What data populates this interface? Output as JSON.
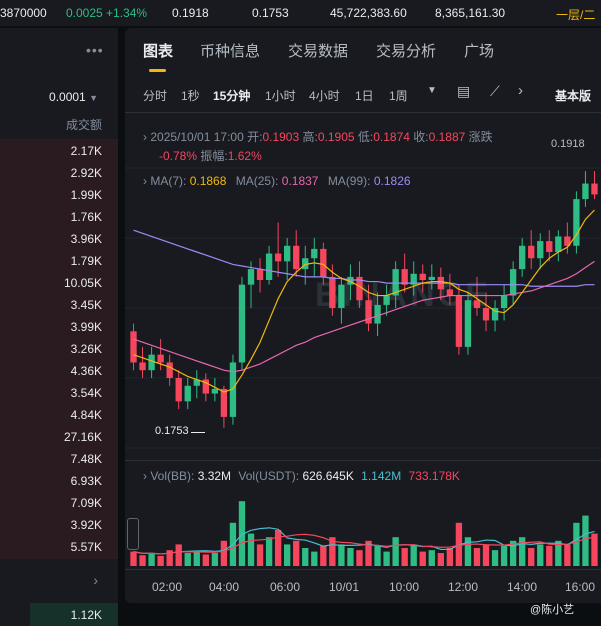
{
  "ticker": {
    "a": "3870000",
    "b": "0.0025 +1.34%",
    "c": "0.1918",
    "d": "0.1753",
    "e": "45,722,383.60",
    "f": "8,365,161.30",
    "g": "一层/二"
  },
  "left_panel": {
    "precision": "0.0001",
    "col_header": "成交额",
    "volumes": [
      "2.17K",
      "2.92K",
      "1.99K",
      "1.76K",
      "3.96K",
      "1.79K",
      "10.05K",
      "3.45K",
      "3.99K",
      "3.26K",
      "4.36K",
      "3.54K",
      "4.84K",
      "27.16K",
      "7.48K",
      "6.93K",
      "7.09K",
      "3.92K",
      "5.57K"
    ],
    "bottom_value": "1.12K"
  },
  "tabs": [
    "图表",
    "币种信息",
    "交易数据",
    "交易分析",
    "广场"
  ],
  "intervals": [
    "分时",
    "1秒",
    "15分钟",
    "1小时",
    "4小时",
    "1日",
    "1周"
  ],
  "interval_active": 2,
  "chart_mode": "基本版",
  "ohlc": {
    "date": "2025/10/01 17:00",
    "open_label": "开:",
    "open": "0.1903",
    "high_label": "高:",
    "high": "0.1905",
    "low_label": "低:",
    "low": "0.1874",
    "close_label": "收:",
    "close": "0.1887",
    "change_label": "涨跌",
    "change": "-0.78%",
    "amp_label": "振幅:",
    "amp": "1.62%"
  },
  "ma": {
    "ma7_label": "MA(7):",
    "ma7": "0.1868",
    "ma25_label": "MA(25):",
    "ma25": "0.1837",
    "ma99_label": "MA(99):",
    "ma99": "0.1826"
  },
  "vol": {
    "label1": "Vol(BB):",
    "v1": "3.32M",
    "label2": "Vol(USDT):",
    "v2": "626.645K",
    "v3": "1.142M",
    "v4": "733.178K"
  },
  "price_high_label": "0.1918",
  "price_low_label": "0.1753",
  "watermark": "BINANCE",
  "credit": "@陈小艺",
  "chart_data": {
    "type": "candlestick",
    "x_ticks": [
      "02:00",
      "04:00",
      "06:00",
      "10/01",
      "10:00",
      "12:00",
      "14:00",
      "16:00"
    ],
    "y_range": [
      0.174,
      0.192
    ],
    "colors": {
      "up": "#2ebd85",
      "down": "#f6465d",
      "ma7": "#f0b90b",
      "ma25": "#e667af",
      "ma99": "#9b8bf5"
    },
    "candles": [
      [
        0.1815,
        0.182,
        0.179,
        0.1795
      ],
      [
        0.1795,
        0.1805,
        0.1785,
        0.179
      ],
      [
        0.179,
        0.1805,
        0.1785,
        0.18
      ],
      [
        0.18,
        0.181,
        0.179,
        0.1795
      ],
      [
        0.1795,
        0.18,
        0.178,
        0.1785
      ],
      [
        0.1785,
        0.179,
        0.1765,
        0.177
      ],
      [
        0.177,
        0.1785,
        0.1765,
        0.178
      ],
      [
        0.178,
        0.179,
        0.1772,
        0.1784
      ],
      [
        0.1784,
        0.1788,
        0.177,
        0.1775
      ],
      [
        0.1775,
        0.1785,
        0.177,
        0.1778
      ],
      [
        0.1778,
        0.178,
        0.1753,
        0.176
      ],
      [
        0.176,
        0.18,
        0.1755,
        0.1795
      ],
      [
        0.1795,
        0.185,
        0.179,
        0.1845
      ],
      [
        0.1845,
        0.186,
        0.183,
        0.1855
      ],
      [
        0.1855,
        0.1862,
        0.184,
        0.1848
      ],
      [
        0.1848,
        0.187,
        0.1845,
        0.1865
      ],
      [
        0.1865,
        0.1885,
        0.185,
        0.186
      ],
      [
        0.186,
        0.1875,
        0.1848,
        0.187
      ],
      [
        0.187,
        0.188,
        0.185,
        0.1855
      ],
      [
        0.1855,
        0.187,
        0.1845,
        0.1862
      ],
      [
        0.1862,
        0.1875,
        0.185,
        0.1868
      ],
      [
        0.1868,
        0.1872,
        0.1845,
        0.185
      ],
      [
        0.185,
        0.1858,
        0.1825,
        0.183
      ],
      [
        0.183,
        0.185,
        0.182,
        0.1845
      ],
      [
        0.1845,
        0.1858,
        0.1835,
        0.185
      ],
      [
        0.185,
        0.186,
        0.183,
        0.1835
      ],
      [
        0.1835,
        0.1845,
        0.1815,
        0.182
      ],
      [
        0.182,
        0.184,
        0.1812,
        0.1832
      ],
      [
        0.1832,
        0.1845,
        0.1825,
        0.1838
      ],
      [
        0.1838,
        0.186,
        0.183,
        0.1855
      ],
      [
        0.1855,
        0.1865,
        0.184,
        0.1845
      ],
      [
        0.1845,
        0.186,
        0.1838,
        0.1852
      ],
      [
        0.1852,
        0.1858,
        0.184,
        0.1848
      ],
      [
        0.1848,
        0.1858,
        0.1842,
        0.185
      ],
      [
        0.185,
        0.1856,
        0.1835,
        0.1842
      ],
      [
        0.1842,
        0.1852,
        0.1832,
        0.1838
      ],
      [
        0.1838,
        0.1845,
        0.18,
        0.1805
      ],
      [
        0.1805,
        0.184,
        0.18,
        0.1835
      ],
      [
        0.1835,
        0.185,
        0.1825,
        0.183
      ],
      [
        0.183,
        0.184,
        0.1815,
        0.1822
      ],
      [
        0.1822,
        0.1835,
        0.1815,
        0.183
      ],
      [
        0.183,
        0.1845,
        0.1822,
        0.1838
      ],
      [
        0.1838,
        0.186,
        0.1832,
        0.1855
      ],
      [
        0.1855,
        0.1875,
        0.185,
        0.187
      ],
      [
        0.187,
        0.188,
        0.1855,
        0.1862
      ],
      [
        0.1862,
        0.1878,
        0.1855,
        0.1873
      ],
      [
        0.1873,
        0.188,
        0.186,
        0.1866
      ],
      [
        0.1866,
        0.188,
        0.186,
        0.1876
      ],
      [
        0.1876,
        0.1885,
        0.1865,
        0.187
      ],
      [
        0.187,
        0.1905,
        0.1865,
        0.19
      ],
      [
        0.19,
        0.1918,
        0.1895,
        0.191
      ],
      [
        0.191,
        0.1918,
        0.19,
        0.1903
      ]
    ],
    "ma7": [
      0.18,
      0.1798,
      0.1796,
      0.1794,
      0.1792,
      0.1789,
      0.1786,
      0.1784,
      0.1782,
      0.1779,
      0.1776,
      0.1778,
      0.1787,
      0.1797,
      0.1808,
      0.1822,
      0.1836,
      0.1847,
      0.1853,
      0.1858,
      0.1859,
      0.1858,
      0.1853,
      0.1849,
      0.1847,
      0.1844,
      0.184,
      0.1838,
      0.1838,
      0.184,
      0.1842,
      0.1844,
      0.1846,
      0.1847,
      0.1847,
      0.1846,
      0.1842,
      0.184,
      0.1836,
      0.1832,
      0.1828,
      0.1827,
      0.1832,
      0.184,
      0.1848,
      0.1856,
      0.1862,
      0.1866,
      0.1869,
      0.1877,
      0.1887,
      0.1893
    ],
    "ma25": [
      0.181,
      0.1808,
      0.1806,
      0.1804,
      0.1802,
      0.18,
      0.1798,
      0.1796,
      0.1794,
      0.1792,
      0.179,
      0.1789,
      0.179,
      0.1792,
      0.1794,
      0.1797,
      0.18,
      0.1803,
      0.1806,
      0.1808,
      0.1811,
      0.1813,
      0.1815,
      0.1817,
      0.1819,
      0.1821,
      0.1823,
      0.1825,
      0.1827,
      0.1829,
      0.1831,
      0.1833,
      0.1835,
      0.1836,
      0.1837,
      0.1838,
      0.1838,
      0.1838,
      0.1838,
      0.1838,
      0.1838,
      0.1838,
      0.1839,
      0.184,
      0.1841,
      0.1843,
      0.1845,
      0.1847,
      0.1849,
      0.1852,
      0.1856,
      0.186
    ],
    "ma99": [
      0.188,
      0.1878,
      0.1876,
      0.1874,
      0.1872,
      0.187,
      0.1868,
      0.1866,
      0.1864,
      0.1862,
      0.186,
      0.1858,
      0.1857,
      0.1856,
      0.1855,
      0.1854,
      0.1853,
      0.1852,
      0.1851,
      0.185,
      0.185,
      0.185,
      0.1849,
      0.1849,
      0.1848,
      0.1848,
      0.1847,
      0.1847,
      0.1846,
      0.1846,
      0.1846,
      0.1846,
      0.1846,
      0.1846,
      0.1846,
      0.1846,
      0.1845,
      0.1845,
      0.1845,
      0.1845,
      0.1845,
      0.1845,
      0.1845,
      0.1845,
      0.1844,
      0.1844,
      0.1844,
      0.1844,
      0.1844,
      0.1844,
      0.1845,
      0.1845
    ],
    "volumes": [
      20,
      15,
      18,
      14,
      22,
      30,
      18,
      20,
      16,
      18,
      35,
      60,
      90,
      45,
      30,
      40,
      50,
      30,
      35,
      25,
      20,
      28,
      40,
      30,
      25,
      22,
      35,
      28,
      20,
      40,
      25,
      30,
      20,
      22,
      18,
      25,
      60,
      40,
      25,
      30,
      22,
      28,
      35,
      40,
      25,
      30,
      28,
      35,
      30,
      60,
      70,
      45
    ],
    "vol_range": [
      0,
      100
    ]
  }
}
